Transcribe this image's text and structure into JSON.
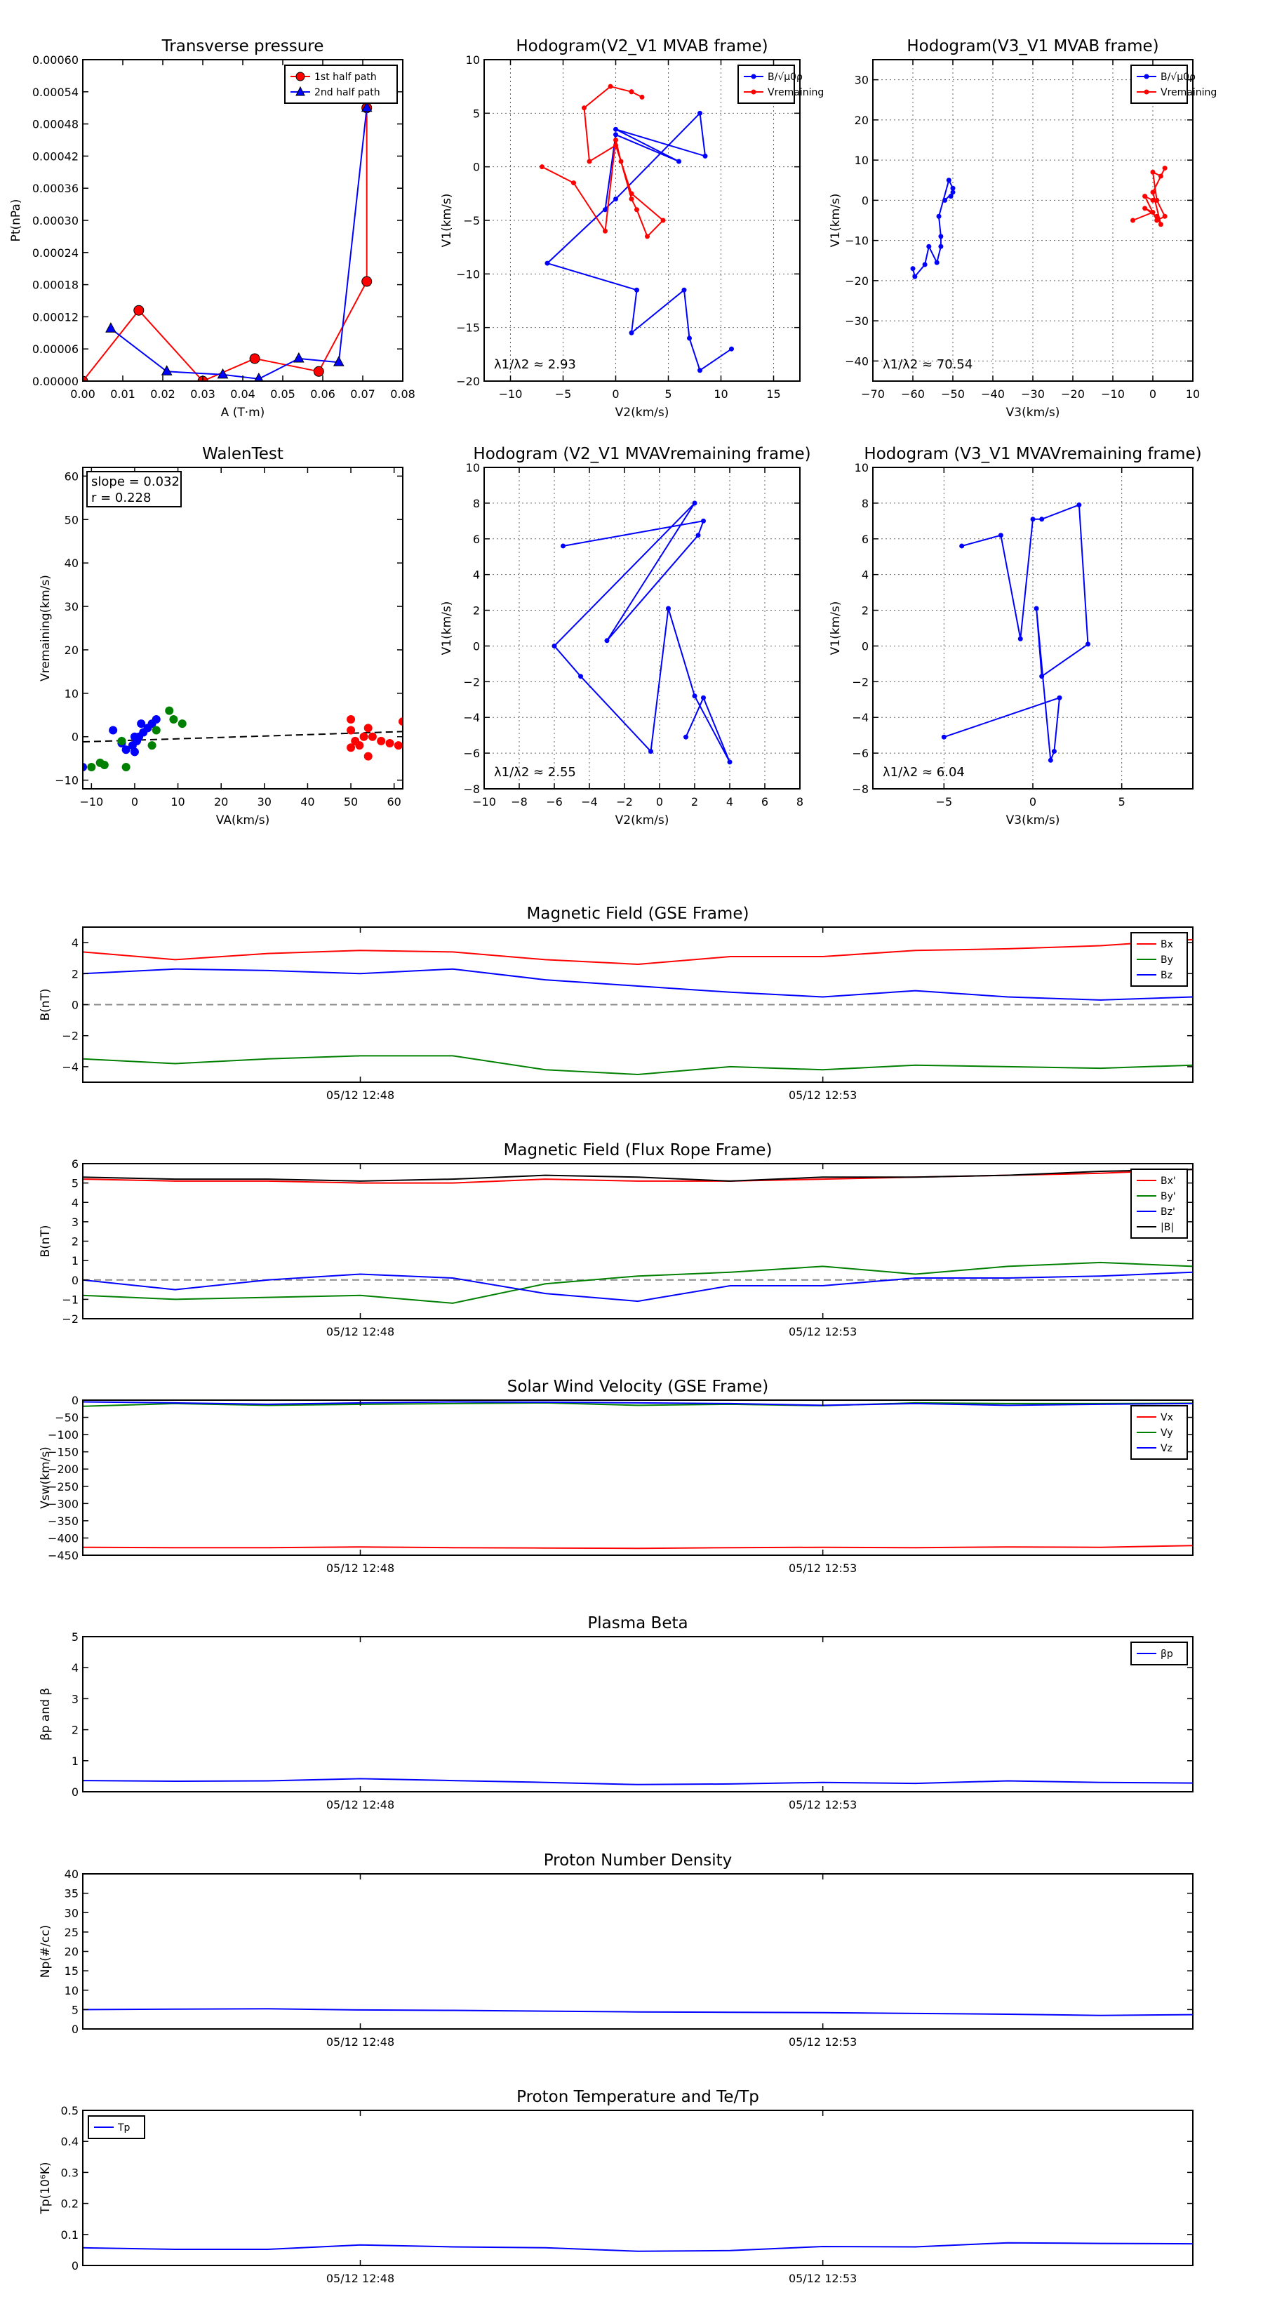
{
  "chart_data": [
    {
      "id": "tp",
      "type": "line",
      "title": "Transverse pressure",
      "xlabel": "A (T·m)",
      "ylabel": "Pt(nPa)",
      "xlim": [
        0.0,
        0.08
      ],
      "ylim": [
        0.0,
        0.0006
      ],
      "xticks": [
        0.0,
        0.01,
        0.02,
        0.03,
        0.04,
        0.05,
        0.06,
        0.07,
        0.08
      ],
      "yticks": [
        0.0,
        6e-05,
        0.00012,
        0.00018,
        0.00024,
        0.0003,
        0.00036,
        0.00042,
        0.00048,
        0.00054,
        0.0006
      ],
      "xtick_labels": [
        "0.00",
        "0.01",
        "0.02",
        "0.03",
        "0.04",
        "0.05",
        "0.06",
        "0.07",
        "0.08"
      ],
      "ytick_labels": [
        "0.00000",
        "0.00006",
        "0.00012",
        "0.00018",
        "0.00024",
        "0.00030",
        "0.00036",
        "0.00042",
        "0.00048",
        "0.00054",
        "0.00060"
      ],
      "grid": false,
      "legend": "top-right",
      "series": [
        {
          "name": "1st half path",
          "color": "#ff0000",
          "marker": "circle",
          "x": [
            0.0,
            0.014,
            0.03,
            0.043,
            0.059,
            0.071,
            0.071
          ],
          "y": [
            0.0,
            0.000132,
            0.0,
            4.2e-05,
            1.8e-05,
            0.000186,
            0.00051
          ]
        },
        {
          "name": "2nd half path",
          "color": "#0000ff",
          "marker": "triangle",
          "x": [
            0.007,
            0.021,
            0.035,
            0.044,
            0.054,
            0.064,
            0.071
          ],
          "y": [
            9.8e-05,
            1.8e-05,
            1.2e-05,
            4e-06,
            4.2e-05,
            3.5e-05,
            0.00051
          ]
        }
      ]
    },
    {
      "id": "h1",
      "type": "line",
      "title": "Hodogram(V2_V1 MVAB frame)",
      "xlabel": "V2(km/s)",
      "ylabel": "V1(km/s)",
      "xlim": [
        -12.5,
        17.5
      ],
      "ylim": [
        -20,
        10
      ],
      "xticks": [
        -10,
        -5,
        0,
        5,
        10,
        15
      ],
      "yticks": [
        -20,
        -15,
        -10,
        -5,
        0,
        5,
        10
      ],
      "grid": true,
      "legend": "top-right",
      "annotation": "λ1/λ2 ≈ 2.93",
      "series": [
        {
          "name": "B/√μ0ρ",
          "color": "#0000ff",
          "marker": "dot",
          "x": [
            11,
            8,
            7,
            6.5,
            1.5,
            2,
            -6.5,
            0,
            8,
            8.5,
            0,
            6,
            0,
            -1
          ],
          "y": [
            -17,
            -19,
            -16,
            -11.5,
            -15.5,
            -11.5,
            -9,
            -3,
            5,
            1,
            3.5,
            0.5,
            3,
            -4
          ]
        },
        {
          "name": "Vremaining",
          "color": "#ff0000",
          "marker": "dot",
          "x": [
            -7,
            -4,
            -1,
            0,
            0.5,
            1.5,
            2,
            3,
            4.5,
            1.5,
            0,
            -2.5,
            -3,
            -0.5,
            1.5,
            2.5,
            1.5
          ],
          "y": [
            0,
            -1.5,
            -6,
            2.5,
            0.5,
            -3,
            -4,
            -6.5,
            -5,
            -2.5,
            2,
            0.5,
            5.5,
            7.5,
            7,
            6.5,
            7
          ]
        }
      ]
    },
    {
      "id": "h2",
      "type": "line",
      "title": "Hodogram(V3_V1 MVAB frame)",
      "xlabel": "V3(km/s)",
      "ylabel": "V1(km/s)",
      "xlim": [
        -70,
        10
      ],
      "ylim": [
        -45,
        35
      ],
      "xticks": [
        -70,
        -60,
        -50,
        -40,
        -30,
        -20,
        -10,
        0,
        10
      ],
      "yticks": [
        -40,
        -30,
        -20,
        -10,
        0,
        10,
        20,
        30
      ],
      "grid": true,
      "legend": "top-right",
      "annotation": "λ1/λ2 ≈ 70.54",
      "series": [
        {
          "name": "B/√μ0ρ",
          "color": "#0000ff",
          "marker": "dot",
          "x": [
            -60,
            -59.5,
            -57,
            -56,
            -54,
            -53,
            -53,
            -53.5,
            -51,
            -50,
            -50.5,
            -50,
            -52
          ],
          "y": [
            -17,
            -19,
            -16,
            -11.5,
            -15.5,
            -11.5,
            -9,
            -4,
            5,
            3,
            1,
            2,
            0
          ]
        },
        {
          "name": "Vremaining",
          "color": "#ff0000",
          "marker": "dot",
          "x": [
            -5,
            0,
            -2,
            1,
            2,
            0,
            3,
            2,
            0,
            1,
            3,
            1,
            -2,
            0
          ],
          "y": [
            -5,
            -3,
            -2,
            -4,
            -6,
            2,
            8,
            6,
            7,
            0,
            -4,
            -5,
            1,
            0
          ]
        }
      ]
    },
    {
      "id": "walen",
      "type": "scatter",
      "title": "WalenTest",
      "xlabel": "VA(km/s)",
      "ylabel": "Vremaining(km/s)",
      "xlim": [
        -12,
        62
      ],
      "ylim": [
        -12,
        62
      ],
      "xticks": [
        -10,
        0,
        10,
        20,
        30,
        40,
        50,
        60
      ],
      "yticks": [
        -10,
        0,
        10,
        20,
        30,
        40,
        50,
        60
      ],
      "grid": false,
      "annotation_slope": "slope = 0.032",
      "annotation_r": "r = 0.228",
      "fit": {
        "slope": 0.032,
        "intercept": -0.8,
        "x": [
          -12,
          62
        ]
      },
      "series": [
        {
          "name": "",
          "color": "#0000ff",
          "x": [
            -12,
            -5,
            -3,
            -2,
            0,
            0.5,
            1,
            1.5,
            2,
            3,
            4,
            5,
            -0.5,
            0
          ],
          "y": [
            -7,
            1.5,
            -1.5,
            -3,
            -3.5,
            -1,
            0,
            3,
            1,
            2,
            3,
            4,
            -2,
            0
          ]
        },
        {
          "name": "",
          "color": "#008000",
          "x": [
            -10,
            -8,
            -7,
            -2,
            4,
            5,
            8,
            9,
            11,
            -3
          ],
          "y": [
            -7,
            -6,
            -6.5,
            -7,
            -2,
            1.5,
            6,
            4,
            3,
            -1
          ]
        },
        {
          "name": "",
          "color": "#ff0000",
          "x": [
            50,
            50,
            51,
            52,
            53,
            54,
            54,
            55,
            57,
            59,
            61,
            62,
            50
          ],
          "y": [
            4,
            1.5,
            -1,
            -2,
            0,
            -4.5,
            2,
            0,
            -1,
            -1.5,
            -2,
            3.5,
            -2.5
          ]
        }
      ]
    },
    {
      "id": "h3",
      "type": "line",
      "title": "Hodogram (V2_V1 MVAVremaining frame)",
      "xlabel": "V2(km/s)",
      "ylabel": "V1(km/s)",
      "xlim": [
        -10,
        8
      ],
      "ylim": [
        -8,
        10
      ],
      "xticks": [
        -10,
        -8,
        -6,
        -4,
        -2,
        0,
        2,
        4,
        6,
        8
      ],
      "yticks": [
        -8,
        -6,
        -4,
        -2,
        0,
        2,
        4,
        6,
        8,
        10
      ],
      "grid": true,
      "annotation": "λ1/λ2 ≈ 2.55",
      "series": [
        {
          "name": "",
          "color": "#0000ff",
          "marker": "dot",
          "x": [
            -5.5,
            2.5,
            2.2,
            -3,
            2,
            -6,
            -4.5,
            -0.5,
            0.5,
            2,
            4,
            2.5,
            1.5
          ],
          "y": [
            5.6,
            7,
            6.2,
            0.3,
            8,
            0,
            -1.7,
            -5.9,
            2.1,
            -2.8,
            -6.5,
            -2.9,
            -5.1
          ]
        }
      ]
    },
    {
      "id": "h4",
      "type": "line",
      "title": "Hodogram (V3_V1 MVAVremaining frame)",
      "xlabel": "V3(km/s)",
      "ylabel": "V1(km/s)",
      "xlim": [
        -9,
        9
      ],
      "ylim": [
        -8,
        10
      ],
      "xticks": [
        -5,
        0,
        5
      ],
      "yticks": [
        -8,
        -6,
        -4,
        -2,
        0,
        2,
        4,
        6,
        8,
        10
      ],
      "grid": true,
      "annotation": "λ1/λ2 ≈ 6.04",
      "series": [
        {
          "name": "",
          "color": "#0000ff",
          "marker": "dot",
          "x": [
            -4,
            -1.8,
            -0.7,
            0,
            0.5,
            2.6,
            3.1,
            0.5,
            0.2,
            1.0,
            1.2,
            1.5,
            -5
          ],
          "y": [
            5.6,
            6.2,
            0.4,
            7.1,
            7.1,
            7.9,
            0.1,
            -1.7,
            2.1,
            -6.4,
            -5.9,
            -2.9,
            -5.1
          ]
        }
      ]
    },
    {
      "id": "bgse",
      "type": "line",
      "title": "Magnetic Field (GSE Frame)",
      "ylabel": "B(nT)",
      "xlim": [
        0,
        12
      ],
      "ylim": [
        -5,
        5
      ],
      "yticks": [
        -4,
        -2,
        0,
        2,
        4
      ],
      "xtick_positions": [
        3,
        8
      ],
      "xtick_labels": [
        "05/12 12:48",
        "05/12 12:53"
      ],
      "zero_line": true,
      "legend": "top-right",
      "x": [
        0,
        1,
        2,
        3,
        4,
        5,
        6,
        7,
        8,
        9,
        10,
        11,
        12
      ],
      "series": [
        {
          "name": "Bx",
          "color": "#ff0000",
          "values": [
            3.4,
            2.9,
            3.3,
            3.5,
            3.4,
            2.9,
            2.6,
            3.1,
            3.1,
            3.5,
            3.6,
            3.8,
            4.2
          ]
        },
        {
          "name": "By",
          "color": "#008000",
          "values": [
            -3.5,
            -3.8,
            -3.5,
            -3.3,
            -3.3,
            -4.2,
            -4.5,
            -4.0,
            -4.2,
            -3.9,
            -4.0,
            -4.1,
            -3.9
          ]
        },
        {
          "name": "Bz",
          "color": "#0000ff",
          "values": [
            2.0,
            2.3,
            2.2,
            2.0,
            2.3,
            1.6,
            1.2,
            0.8,
            0.5,
            0.9,
            0.5,
            0.3,
            0.5
          ]
        }
      ]
    },
    {
      "id": "bfr",
      "type": "line",
      "title": "Magnetic Field (Flux Rope Frame)",
      "ylabel": "B(nT)",
      "xlim": [
        0,
        12
      ],
      "ylim": [
        -2,
        6
      ],
      "yticks": [
        -2,
        -1,
        0,
        1,
        2,
        3,
        4,
        5,
        6
      ],
      "xtick_positions": [
        3,
        8
      ],
      "xtick_labels": [
        "05/12 12:48",
        "05/12 12:53"
      ],
      "zero_line": true,
      "legend": "top-right",
      "x": [
        0,
        1,
        2,
        3,
        4,
        5,
        6,
        7,
        8,
        9,
        10,
        11,
        12
      ],
      "series": [
        {
          "name": "Bx'",
          "color": "#ff0000",
          "values": [
            5.2,
            5.1,
            5.1,
            5.0,
            5.0,
            5.2,
            5.1,
            5.1,
            5.2,
            5.3,
            5.4,
            5.5,
            5.7
          ]
        },
        {
          "name": "By'",
          "color": "#008000",
          "values": [
            -0.8,
            -1.0,
            -0.9,
            -0.8,
            -1.2,
            -0.2,
            0.2,
            0.4,
            0.7,
            0.3,
            0.7,
            0.9,
            0.7
          ]
        },
        {
          "name": "Bz'",
          "color": "#0000ff",
          "values": [
            0.0,
            -0.5,
            0.0,
            0.3,
            0.1,
            -0.7,
            -1.1,
            -0.3,
            -0.3,
            0.1,
            0.1,
            0.2,
            0.4
          ]
        },
        {
          "name": "|B|",
          "color": "#000000",
          "values": [
            5.3,
            5.2,
            5.2,
            5.1,
            5.2,
            5.4,
            5.3,
            5.1,
            5.3,
            5.3,
            5.4,
            5.6,
            5.7
          ]
        }
      ]
    },
    {
      "id": "vsw",
      "type": "line",
      "title": "Solar Wind Velocity (GSE Frame)",
      "ylabel": "Vsw(km/s)",
      "xlim": [
        0,
        12
      ],
      "ylim": [
        -450,
        0
      ],
      "yticks": [
        -450,
        -400,
        -350,
        -300,
        -250,
        -200,
        -150,
        -100,
        -50,
        0
      ],
      "xtick_positions": [
        3,
        8
      ],
      "xtick_labels": [
        "05/12 12:48",
        "05/12 12:53"
      ],
      "legend": "top-right",
      "x": [
        0,
        1,
        2,
        3,
        4,
        5,
        6,
        7,
        8,
        9,
        10,
        11,
        12
      ],
      "series": [
        {
          "name": "Vx",
          "color": "#ff0000",
          "values": [
            -427,
            -428,
            -428,
            -426,
            -428,
            -429,
            -430,
            -428,
            -427,
            -428,
            -426,
            -427,
            -422
          ]
        },
        {
          "name": "Vy",
          "color": "#008000",
          "values": [
            -18,
            -10,
            -15,
            -12,
            -10,
            -8,
            -15,
            -12,
            -16,
            -8,
            -10,
            -10,
            -9
          ]
        },
        {
          "name": "Vz",
          "color": "#0000ff",
          "values": [
            -5,
            -8,
            -12,
            -8,
            -5,
            -6,
            -8,
            -10,
            -15,
            -10,
            -15,
            -12,
            -10
          ]
        }
      ]
    },
    {
      "id": "beta",
      "type": "line",
      "title": "Plasma Beta",
      "ylabel": "βp and β",
      "xlim": [
        0,
        12
      ],
      "ylim": [
        0,
        5
      ],
      "yticks": [
        0,
        1,
        2,
        3,
        4,
        5
      ],
      "xtick_positions": [
        3,
        8
      ],
      "xtick_labels": [
        "05/12 12:48",
        "05/12 12:53"
      ],
      "legend": "top-right",
      "x": [
        0,
        1,
        2,
        3,
        4,
        5,
        6,
        7,
        8,
        9,
        10,
        11,
        12
      ],
      "series": [
        {
          "name": "βp",
          "color": "#0000ff",
          "values": [
            0.36,
            0.34,
            0.35,
            0.42,
            0.36,
            0.3,
            0.23,
            0.25,
            0.3,
            0.27,
            0.35,
            0.3,
            0.28
          ]
        }
      ]
    },
    {
      "id": "np",
      "type": "line",
      "title": "Proton Number Density",
      "ylabel": "Np(#/cc)",
      "xlim": [
        0,
        12
      ],
      "ylim": [
        0,
        40
      ],
      "yticks": [
        0,
        5,
        10,
        15,
        20,
        25,
        30,
        35,
        40
      ],
      "xtick_positions": [
        3,
        8
      ],
      "xtick_labels": [
        "05/12 12:48",
        "05/12 12:53"
      ],
      "x": [
        0,
        1,
        2,
        3,
        4,
        5,
        6,
        7,
        8,
        9,
        10,
        11,
        12
      ],
      "series": [
        {
          "name": "",
          "color": "#0000ff",
          "values": [
            5.0,
            5.1,
            5.2,
            4.9,
            4.8,
            4.6,
            4.4,
            4.3,
            4.2,
            4.0,
            3.8,
            3.5,
            3.7
          ]
        }
      ]
    },
    {
      "id": "tpp",
      "type": "line",
      "title": "Proton Temperature and Te/Tp",
      "ylabel": "Tp(10⁶K)",
      "xlim": [
        0,
        12
      ],
      "ylim": [
        0,
        0.5
      ],
      "yticks": [
        0.0,
        0.1,
        0.2,
        0.3,
        0.4,
        0.5
      ],
      "xtick_positions": [
        3,
        8
      ],
      "xtick_labels": [
        "05/12 12:48",
        "05/12 12:53"
      ],
      "legend": "top-left",
      "x": [
        0,
        1,
        2,
        3,
        4,
        5,
        6,
        7,
        8,
        9,
        10,
        11,
        12
      ],
      "series": [
        {
          "name": "Tp",
          "color": "#0000ff",
          "values": [
            0.057,
            0.052,
            0.052,
            0.066,
            0.06,
            0.057,
            0.046,
            0.048,
            0.061,
            0.06,
            0.073,
            0.071,
            0.07
          ]
        }
      ]
    }
  ]
}
